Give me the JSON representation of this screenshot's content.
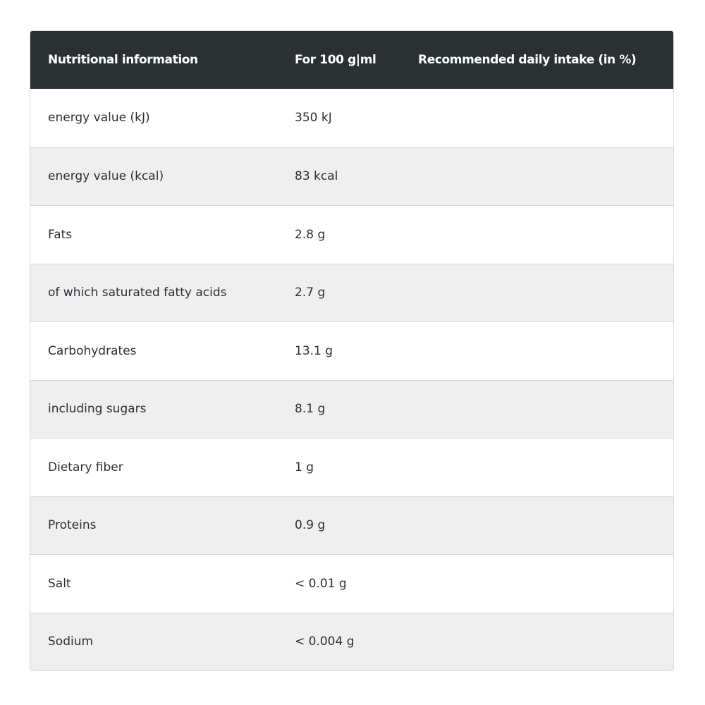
{
  "table": {
    "headers": {
      "nutrient": "Nutritional information",
      "per_100": "For 100 g|ml",
      "daily_intake": "Recommended daily intake (in %)"
    },
    "rows": [
      {
        "nutrient": "energy value (kJ)",
        "per_100": "350 kJ",
        "daily_intake": ""
      },
      {
        "nutrient": "energy value (kcal)",
        "per_100": "83 kcal",
        "daily_intake": ""
      },
      {
        "nutrient": "Fats",
        "per_100": "2.8 g",
        "daily_intake": ""
      },
      {
        "nutrient": "of which saturated fatty acids",
        "per_100": "2.7 g",
        "daily_intake": ""
      },
      {
        "nutrient": "Carbohydrates",
        "per_100": "13.1 g",
        "daily_intake": ""
      },
      {
        "nutrient": "including sugars",
        "per_100": "8.1 g",
        "daily_intake": ""
      },
      {
        "nutrient": "Dietary fiber",
        "per_100": "1 g",
        "daily_intake": ""
      },
      {
        "nutrient": "Proteins",
        "per_100": "0.9 g",
        "daily_intake": ""
      },
      {
        "nutrient": "Salt",
        "per_100": "< 0.01 g",
        "daily_intake": ""
      },
      {
        "nutrient": "Sodium",
        "per_100": "< 0.004 g",
        "daily_intake": ""
      }
    ]
  },
  "colors": {
    "header_bg": "#2b3033",
    "header_text": "#ffffff",
    "row_alt_bg": "#efefef",
    "text": "#2b2f33"
  }
}
